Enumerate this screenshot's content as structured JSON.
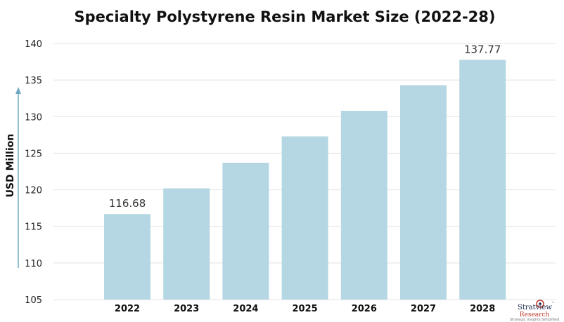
{
  "chart_data": {
    "type": "bar",
    "title": "Specialty Polystyrene Resin Market Size (2022-28)",
    "xlabel": "",
    "ylabel": "USD Million",
    "categories": [
      "2022",
      "2023",
      "2024",
      "2025",
      "2026",
      "2027",
      "2028"
    ],
    "values": [
      116.68,
      120.2,
      123.7,
      127.3,
      130.8,
      134.3,
      137.77
    ],
    "data_labels": [
      {
        "category": "2022",
        "text": "116.68"
      },
      {
        "category": "2028",
        "text": "137.77"
      }
    ],
    "ylim": [
      105,
      140
    ],
    "yticks": [
      105,
      110,
      115,
      120,
      125,
      130,
      135,
      140
    ],
    "grid": true,
    "bar_color": "#b5d6e3",
    "axis_arrow_color": "#6fa8c3"
  },
  "logo": {
    "brand": "Stratview",
    "tm": "™",
    "sub": "Research",
    "tagline": "Strategic Insights Simplified"
  }
}
